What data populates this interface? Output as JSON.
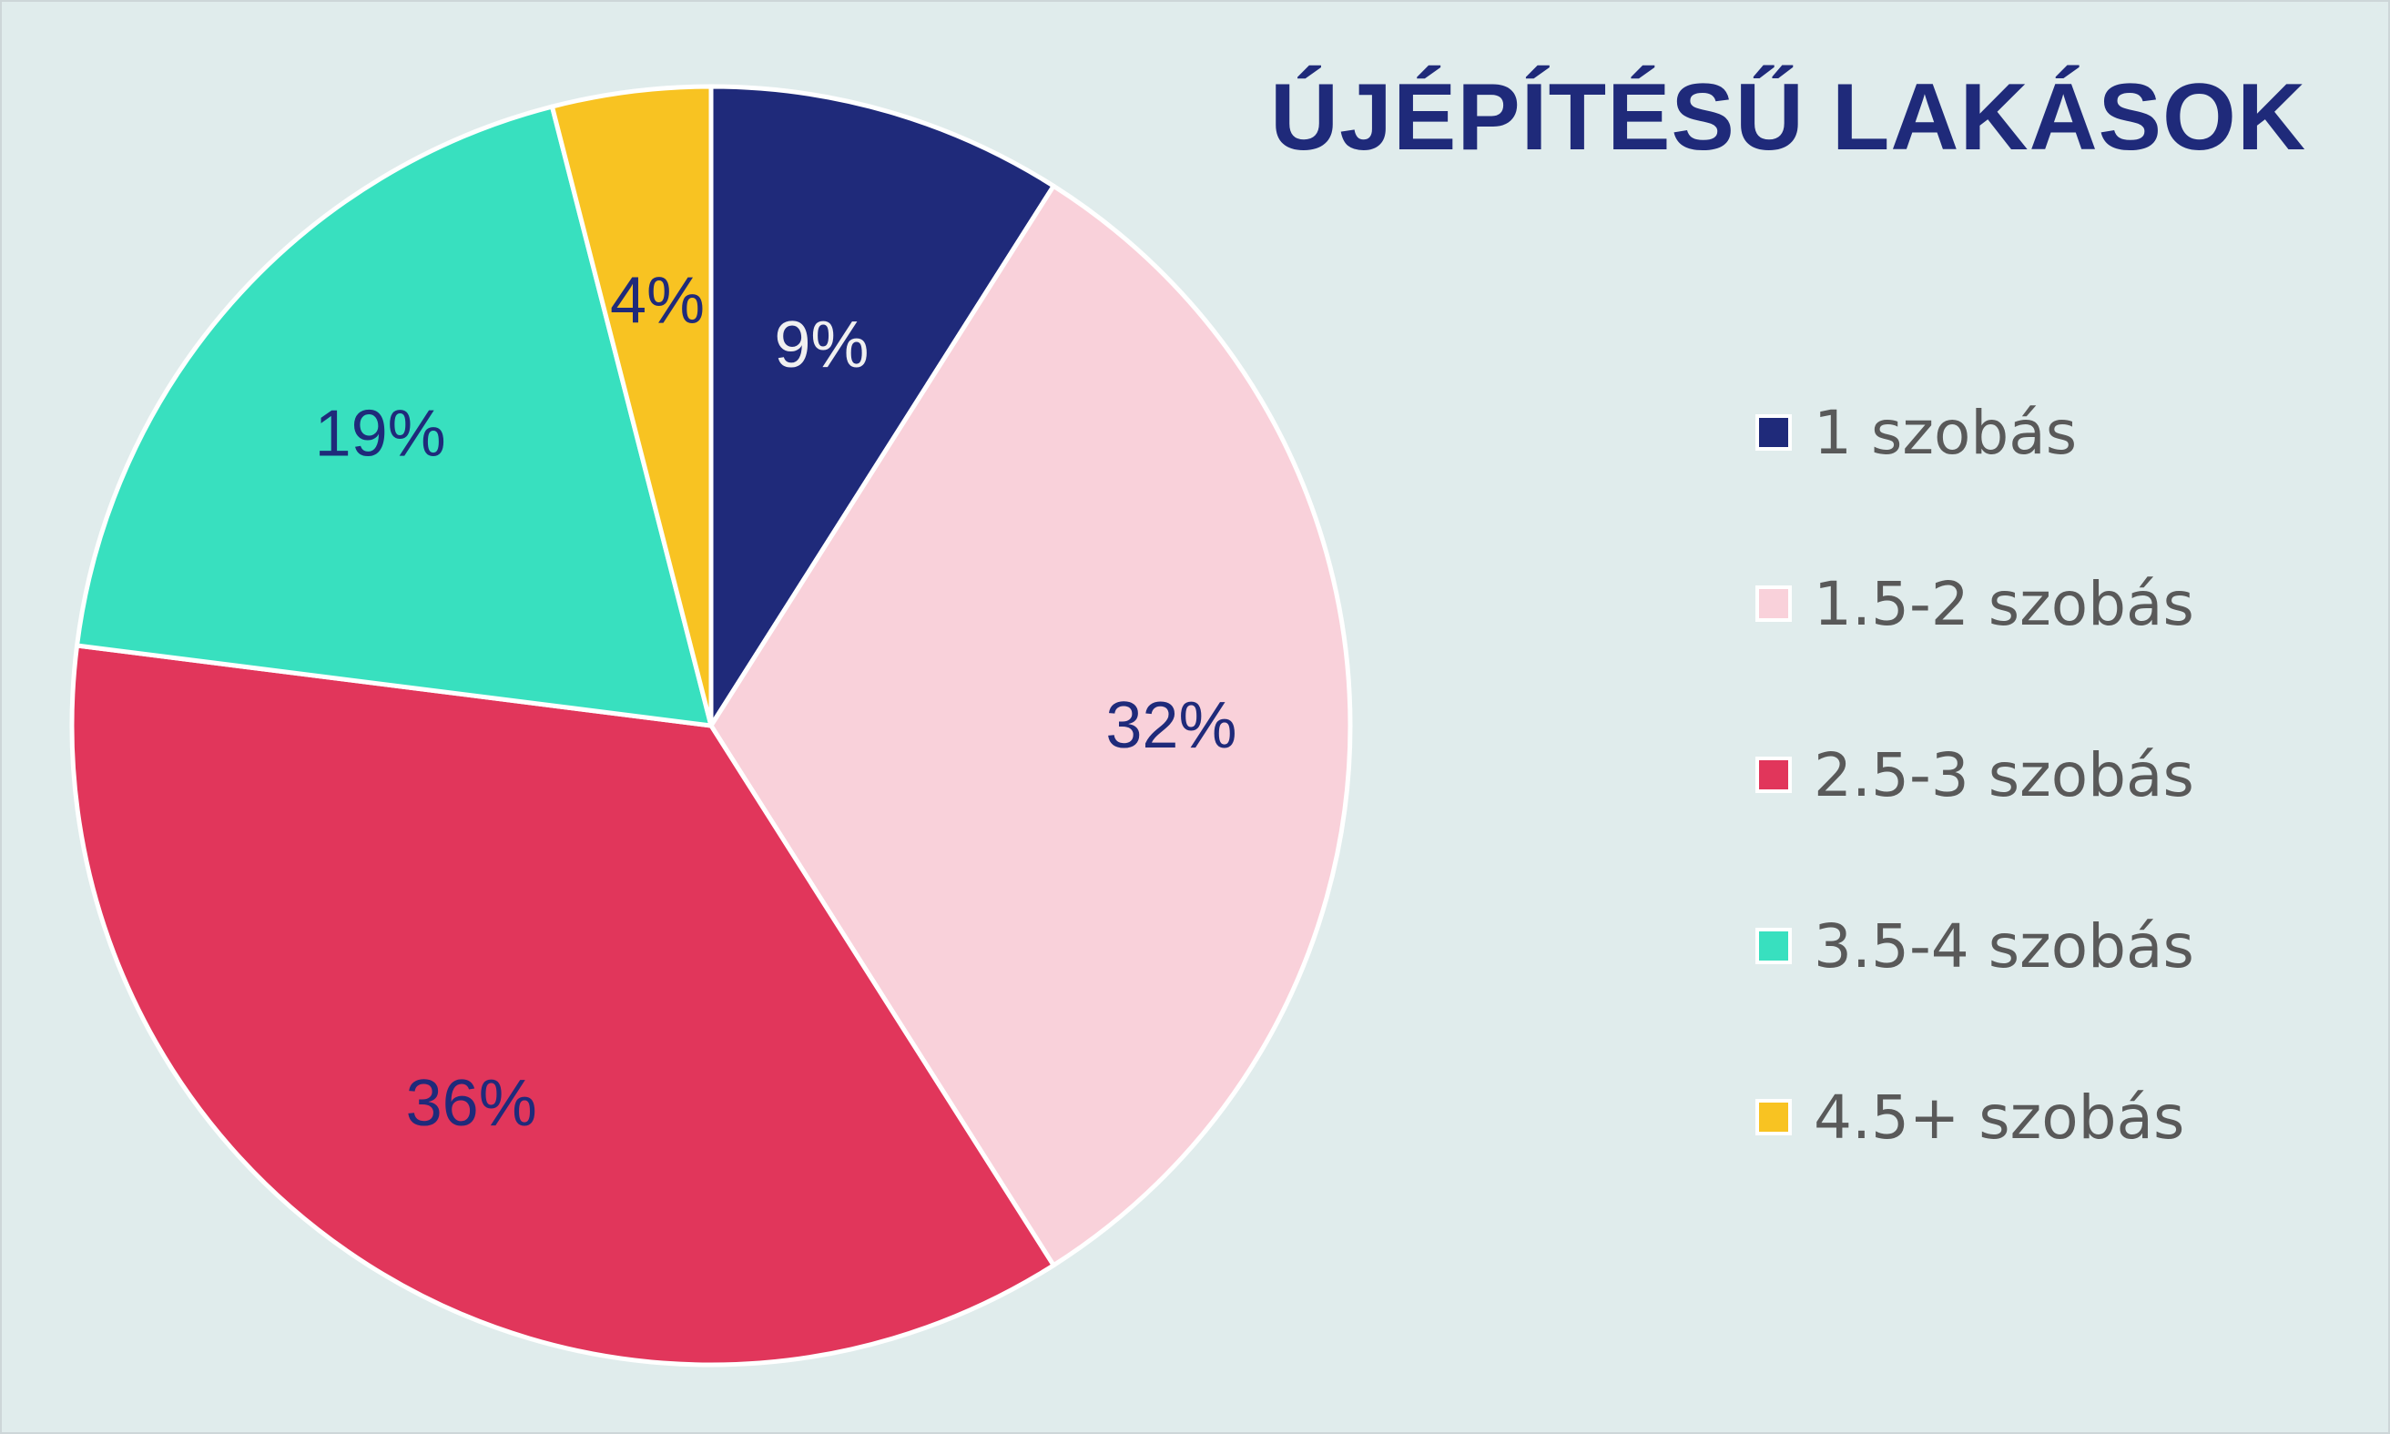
{
  "chart_data": {
    "type": "pie",
    "title": "ÚJÉPÍTÉSŰ LAKÁSOK",
    "categories": [
      "1 szobás",
      "1.5-2 szobás",
      "2.5-3 szobás",
      "3.5-4 szobás",
      "4.5+ szobás"
    ],
    "values": [
      9,
      32,
      36,
      19,
      4
    ],
    "data_labels": [
      "9%",
      "32%",
      "36%",
      "19%",
      "4%"
    ],
    "colors": [
      "#1f2a7a",
      "#f9d1da",
      "#e1365b",
      "#38e0bf",
      "#f8c322"
    ],
    "label_colors": [
      "#f0f0f0",
      "#1f2a7a",
      "#1f2a7a",
      "#1f2a7a",
      "#1f2a7a"
    ],
    "legend_position": "right",
    "start_angle": "top",
    "direction": "clockwise"
  }
}
